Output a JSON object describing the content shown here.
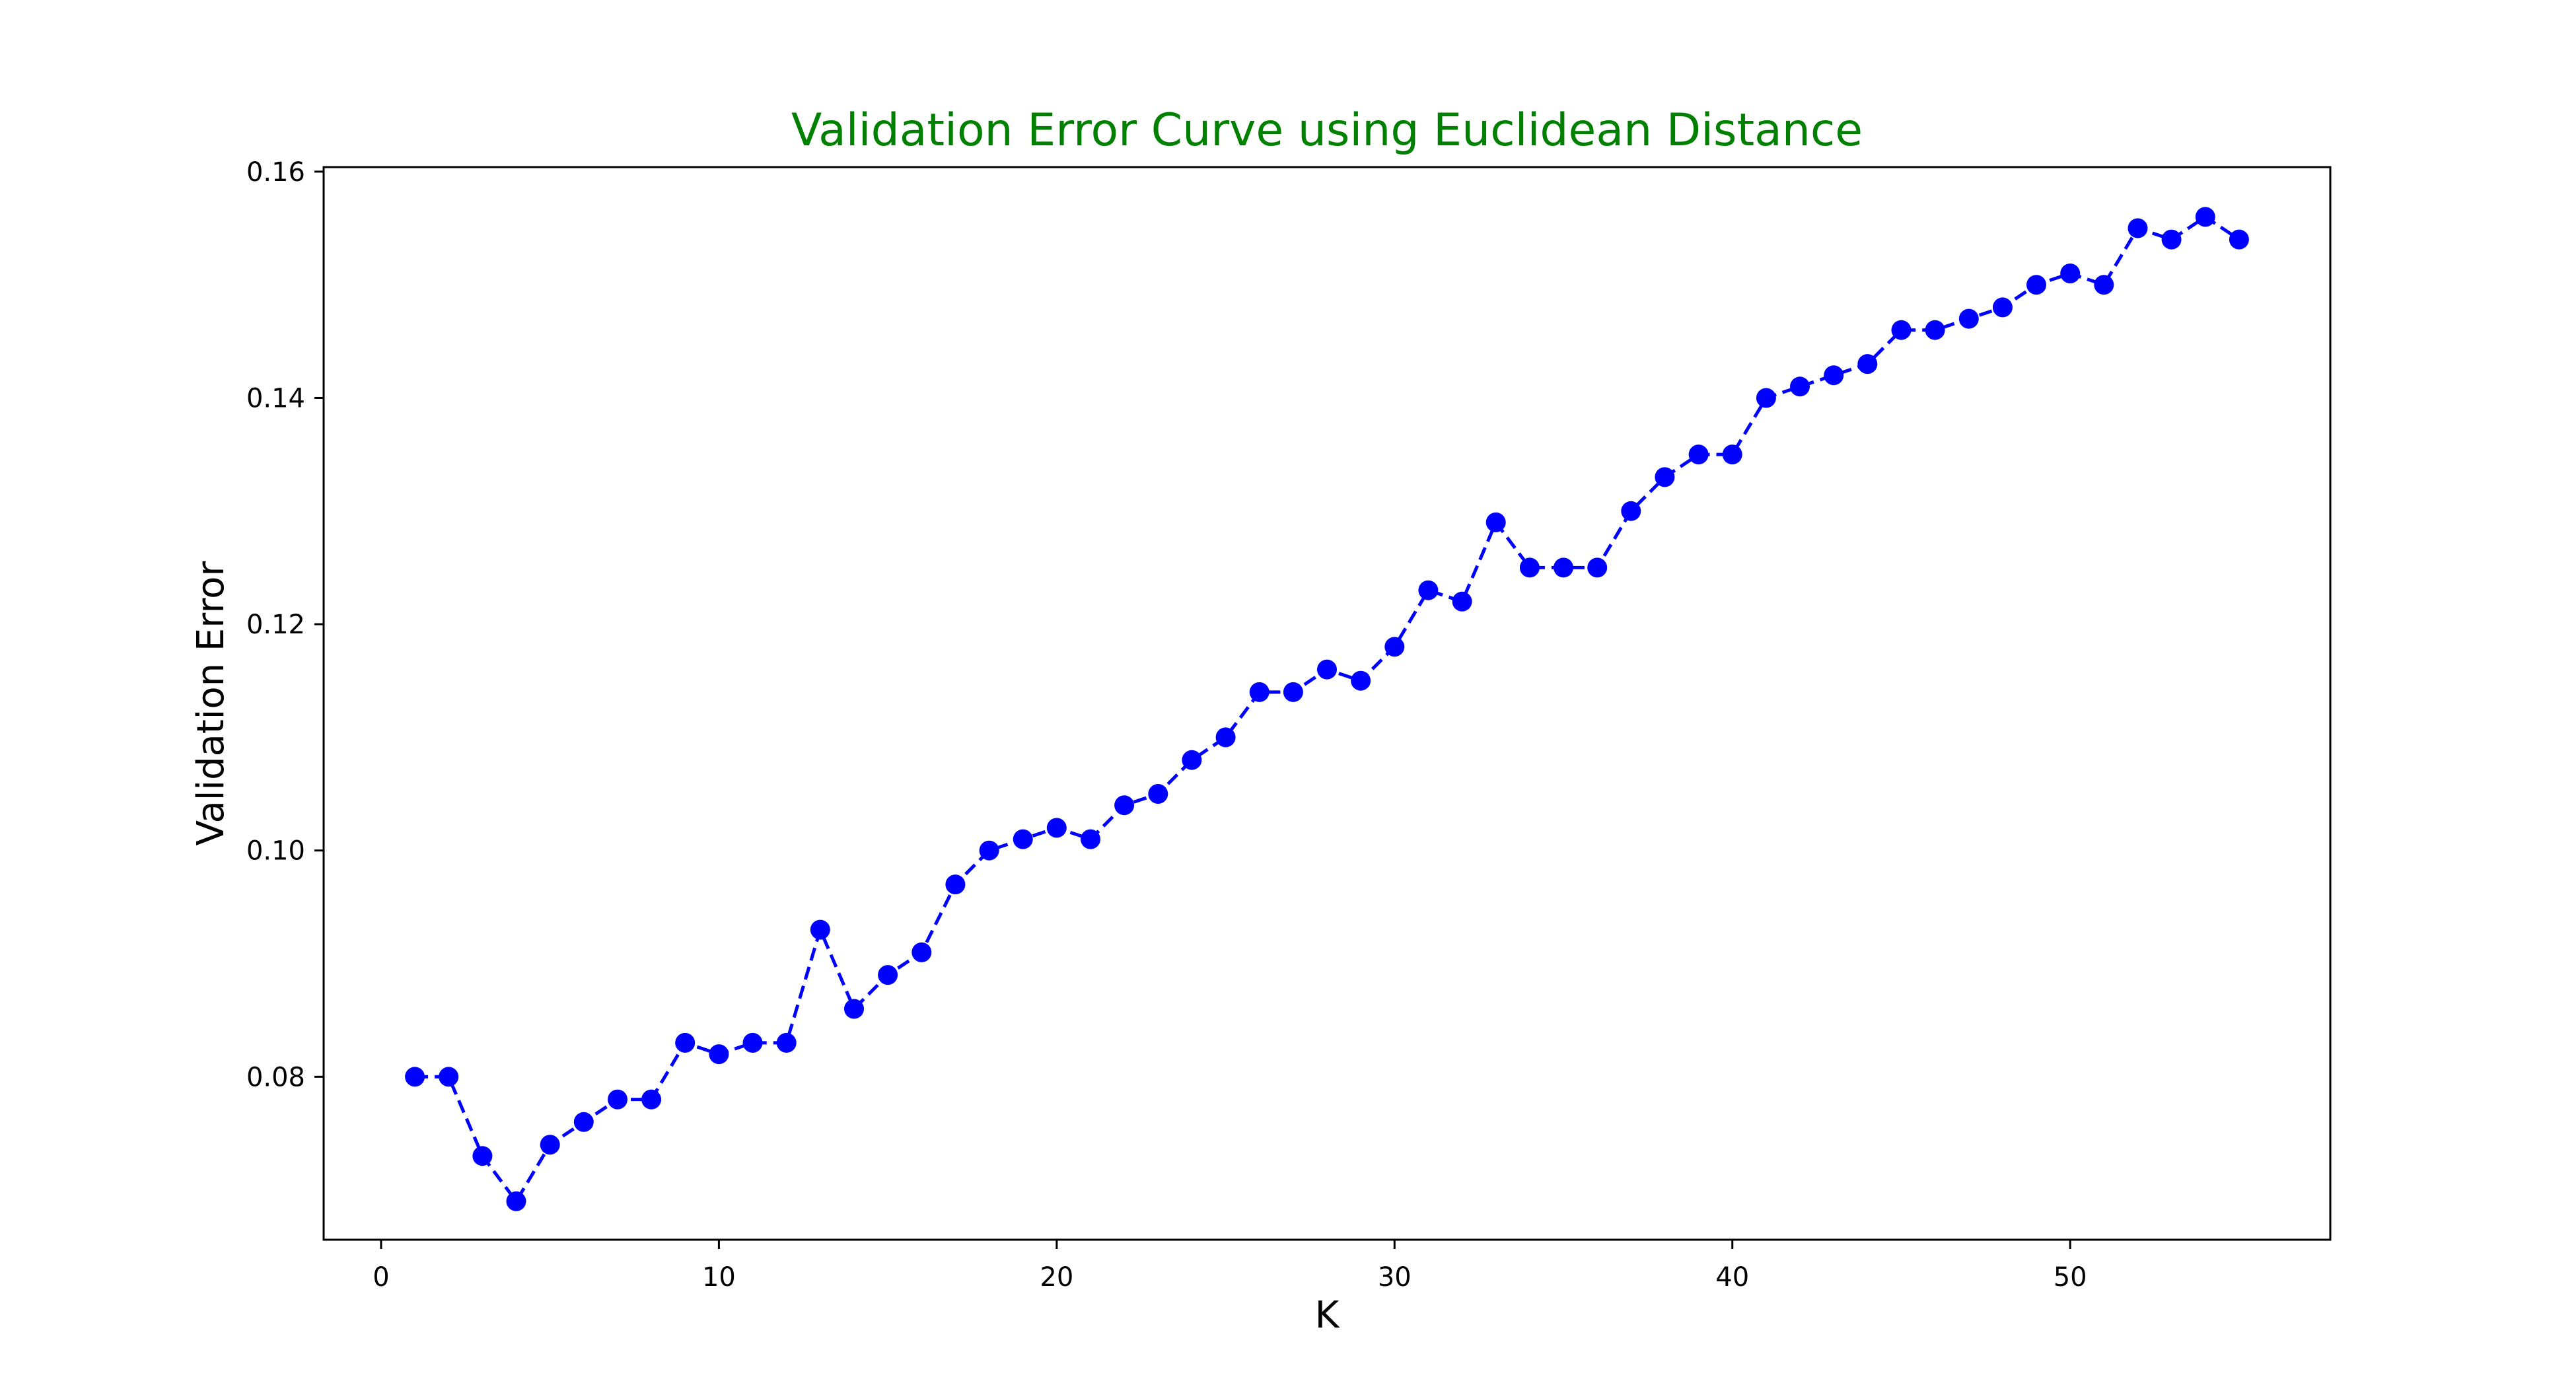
{
  "chart_data": {
    "type": "line",
    "title": "Validation Error Curve using Euclidean Distance",
    "xlabel": "K",
    "ylabel": "Validation Error",
    "xlim": [
      -1.7,
      57.7
    ],
    "ylim": [
      0.0656,
      0.1604
    ],
    "grid": false,
    "legend": "none",
    "x_ticks": [
      0,
      10,
      20,
      30,
      40,
      50
    ],
    "x_tick_labels": [
      "0",
      "10",
      "20",
      "30",
      "40",
      "50"
    ],
    "y_ticks": [
      0.08,
      0.1,
      0.12,
      0.14,
      0.16
    ],
    "y_tick_labels": [
      "0.08",
      "0.10",
      "0.12",
      "0.14",
      "0.16"
    ],
    "series": [
      {
        "color": "#0000ff",
        "line_style": "dashed",
        "marker": "circle",
        "x": [
          1,
          2,
          3,
          4,
          5,
          6,
          7,
          8,
          9,
          10,
          11,
          12,
          13,
          14,
          15,
          16,
          17,
          18,
          19,
          20,
          21,
          22,
          23,
          24,
          25,
          26,
          27,
          28,
          29,
          30,
          31,
          32,
          33,
          34,
          35,
          36,
          37,
          38,
          39,
          40,
          41,
          42,
          43,
          44,
          45,
          46,
          47,
          48,
          49,
          50,
          51,
          52,
          53,
          54,
          55
        ],
        "values": [
          0.08,
          0.08,
          0.073,
          0.069,
          0.074,
          0.076,
          0.078,
          0.078,
          0.083,
          0.082,
          0.083,
          0.083,
          0.093,
          0.086,
          0.089,
          0.091,
          0.097,
          0.1,
          0.101,
          0.102,
          0.101,
          0.104,
          0.105,
          0.108,
          0.11,
          0.114,
          0.114,
          0.116,
          0.115,
          0.118,
          0.123,
          0.122,
          0.129,
          0.125,
          0.125,
          0.125,
          0.13,
          0.133,
          0.135,
          0.135,
          0.14,
          0.141,
          0.142,
          0.143,
          0.146,
          0.146,
          0.147,
          0.148,
          0.15,
          0.151,
          0.15,
          0.155,
          0.154,
          0.156,
          0.154
        ]
      }
    ],
    "colors": {
      "title": "#008000",
      "axes": "#000000",
      "series": "#0000ff"
    }
  }
}
